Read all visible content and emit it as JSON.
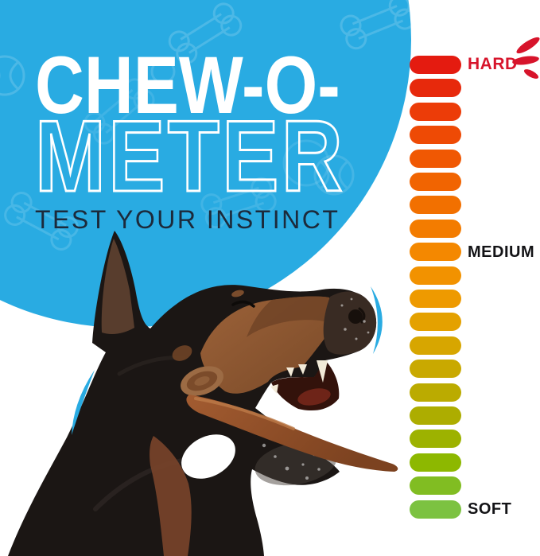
{
  "title": {
    "line1": "CHEW-O-",
    "line2": "METER",
    "tagline": "TEST YOUR INSTINCT"
  },
  "meter": {
    "hard_label": "HARD",
    "medium_label": "MEDIUM",
    "soft_label": "SOFT",
    "bar_count": 20,
    "bar_colors_top_to_bottom": [
      "#e41b10",
      "#e7290c",
      "#ec3c08",
      "#ee4a05",
      "#f05803",
      "#f16401",
      "#f27000",
      "#f37c00",
      "#f48800",
      "#f29200",
      "#ee9a00",
      "#e4a100",
      "#d7a600",
      "#c9a900",
      "#bbab00",
      "#adad00",
      "#9db200",
      "#8db800",
      "#81bd22",
      "#7cc241"
    ]
  },
  "colors": {
    "background": "#ffffff",
    "circle_blue": "#29abe2",
    "title_white": "#ffffff",
    "tagline_dark": "#1c2a3b",
    "hard_red": "#d7142b",
    "label_dark": "#131316",
    "dog_black": "#1b1614",
    "dog_tan": "#8a5731",
    "stick_brown": "#9a5c31",
    "swoosh_cyan": "#29abe2"
  },
  "illustration": {
    "dog_alt": "Doberman dog chewing a bully stick"
  }
}
